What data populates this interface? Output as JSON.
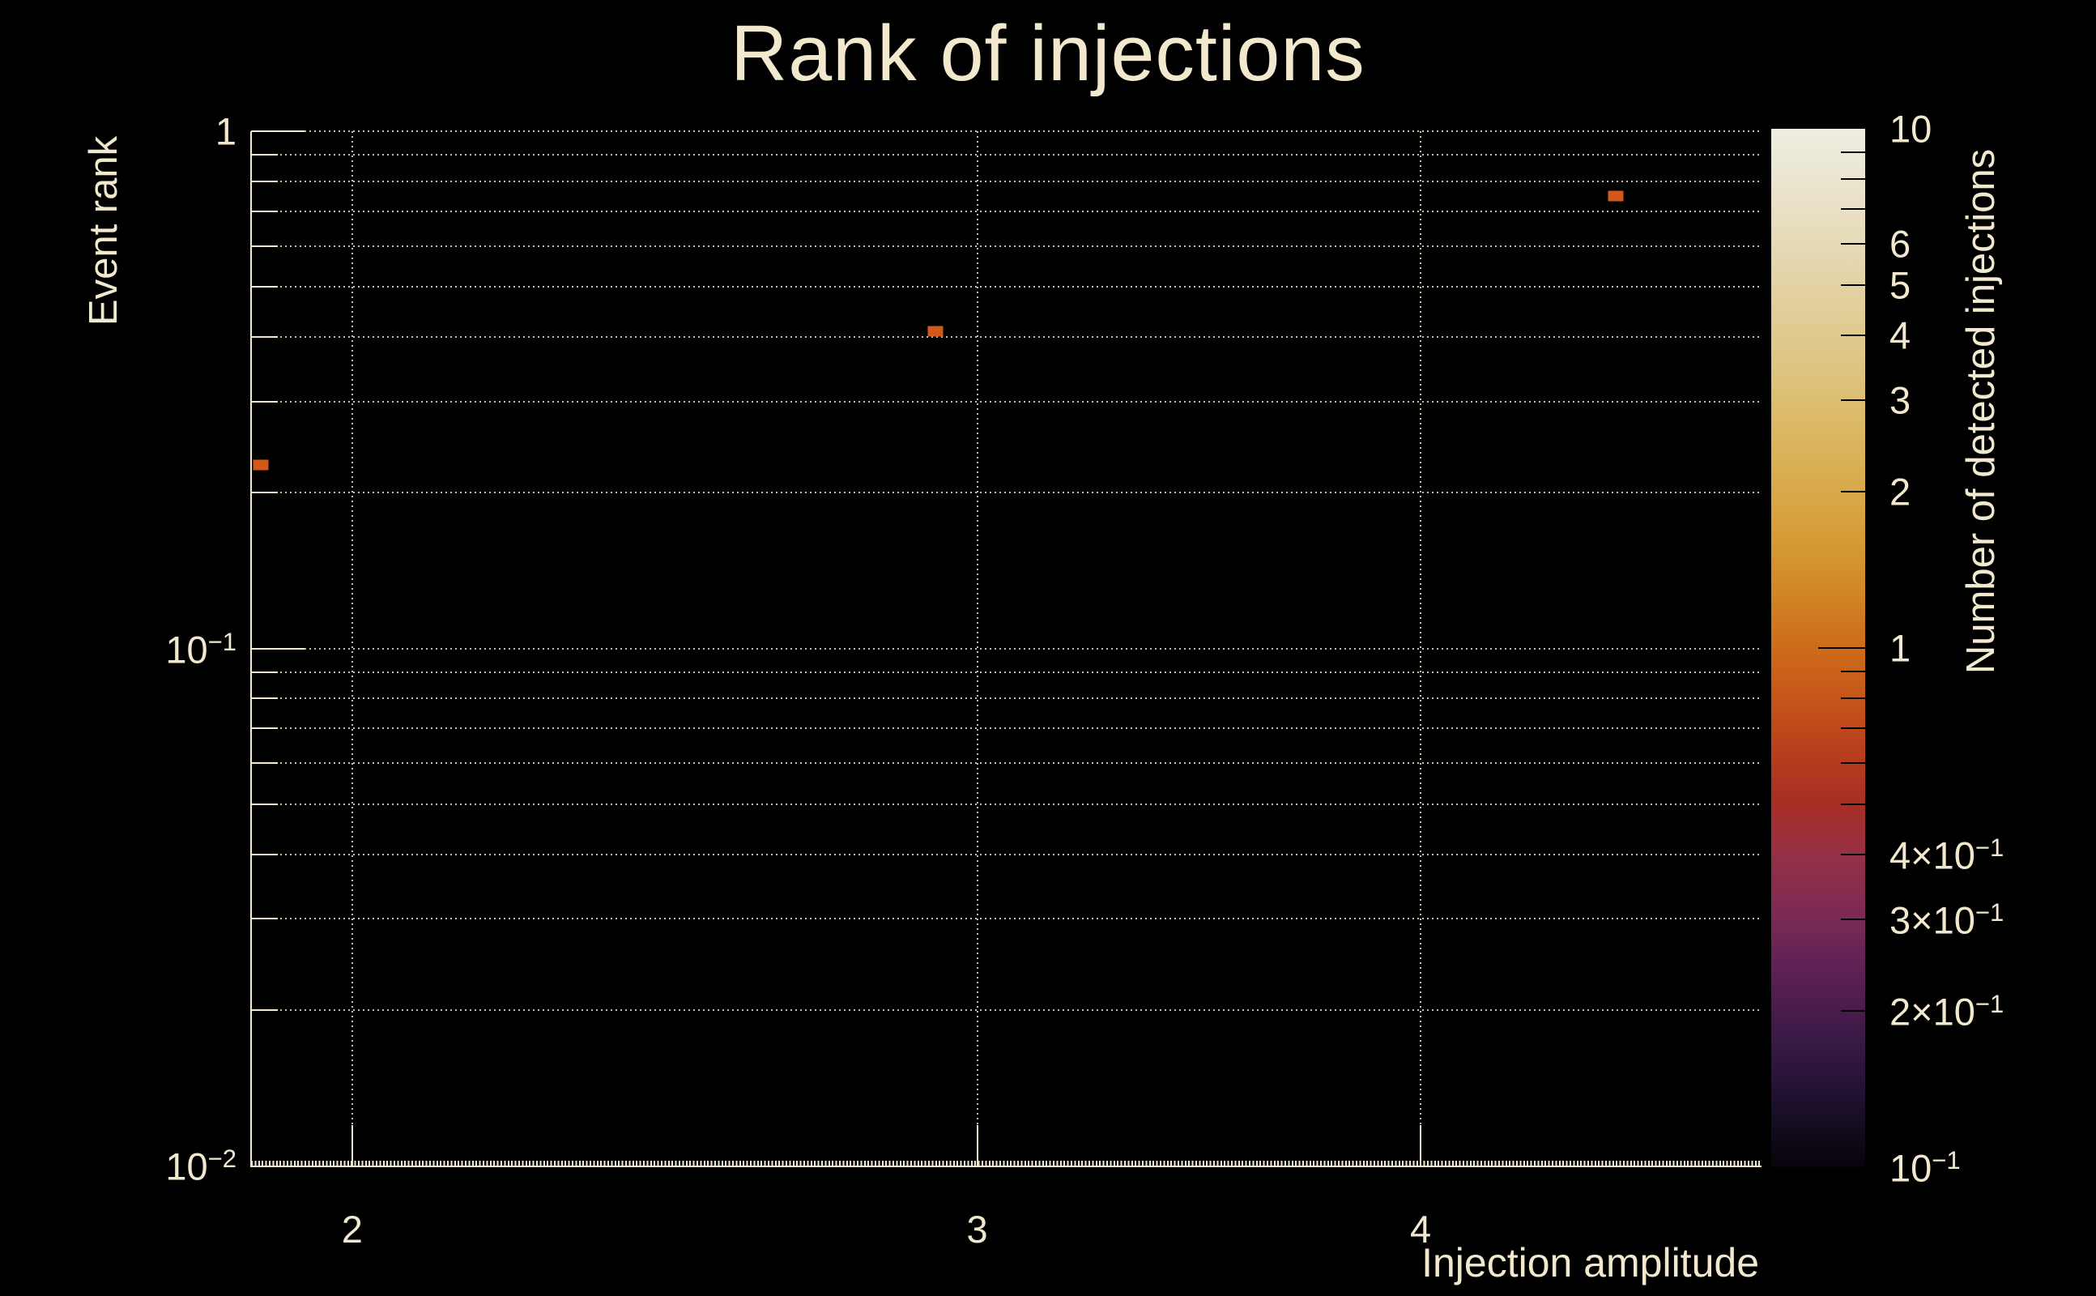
{
  "title": "Rank of injections",
  "colors": {
    "background": "#000000",
    "text": "#f1e8cd",
    "grid": "#f2e9ce",
    "marker": "#d2591a",
    "colorbar_tick": "#000000"
  },
  "chart_data": {
    "type": "heatmap",
    "title": "Rank of injections",
    "xlabel": "Injection amplitude",
    "ylabel": "Event rank",
    "colorbar_label": "Number of detected injections",
    "xscale": "log",
    "yscale": "log",
    "cscale": "log",
    "xlim": [
      1.873,
      4.99
    ],
    "ylim": [
      0.01,
      1
    ],
    "clim": [
      0.1,
      10
    ],
    "grid": true,
    "x_ticks": [
      {
        "value": 2,
        "label": "2"
      },
      {
        "value": 3,
        "label": "3"
      },
      {
        "value": 4,
        "label": "4"
      }
    ],
    "y_ticks": [
      {
        "value": 1,
        "base": "1",
        "exp": ""
      },
      {
        "value": 0.1,
        "base": "10",
        "exp": "−1"
      },
      {
        "value": 0.01,
        "base": "10",
        "exp": "−2"
      }
    ],
    "x_gridlines": [
      2,
      3,
      4
    ],
    "y_gridlines": [
      1,
      0.9,
      0.8,
      0.7,
      0.6,
      0.5,
      0.4,
      0.3,
      0.2,
      0.1,
      0.09,
      0.08,
      0.07,
      0.06,
      0.05,
      0.04,
      0.03,
      0.02
    ],
    "y_major_gridlines": [
      1,
      0.1
    ],
    "colorbar_ticks": [
      {
        "value": 10,
        "base": "10",
        "exp": ""
      },
      {
        "value": 6,
        "base": "6",
        "exp": ""
      },
      {
        "value": 5,
        "base": "5",
        "exp": ""
      },
      {
        "value": 4,
        "base": "4",
        "exp": ""
      },
      {
        "value": 3,
        "base": "3",
        "exp": ""
      },
      {
        "value": 2,
        "base": "2",
        "exp": ""
      },
      {
        "value": 1,
        "base": "1",
        "exp": ""
      },
      {
        "value": 0.4,
        "base": "4×10",
        "exp": "−1"
      },
      {
        "value": 0.3,
        "base": "3×10",
        "exp": "−1"
      },
      {
        "value": 0.2,
        "base": "2×10",
        "exp": "−1"
      },
      {
        "value": 0.1,
        "base": "10",
        "exp": "−1"
      }
    ],
    "colorbar_minor_tick_values": [
      9,
      8,
      7,
      6,
      5,
      4,
      3,
      2,
      0.9,
      0.8,
      0.7,
      0.6,
      0.5,
      0.4,
      0.3,
      0.2
    ],
    "colorbar_major_tick_values": [
      1
    ],
    "colorbar_gradient": [
      {
        "pos": 0,
        "color": "#efede3"
      },
      {
        "pos": 8,
        "color": "#e8e0c4"
      },
      {
        "pos": 16,
        "color": "#e2d0a0"
      },
      {
        "pos": 24,
        "color": "#ddc37c"
      },
      {
        "pos": 31,
        "color": "#dab35a"
      },
      {
        "pos": 38,
        "color": "#d6a03c"
      },
      {
        "pos": 44,
        "color": "#d28a28"
      },
      {
        "pos": 50,
        "color": "#cd6c1a"
      },
      {
        "pos": 55,
        "color": "#c5551a"
      },
      {
        "pos": 60,
        "color": "#b83f1d"
      },
      {
        "pos": 65,
        "color": "#a72e26"
      },
      {
        "pos": 70,
        "color": "#953046"
      },
      {
        "pos": 76,
        "color": "#7a2a55"
      },
      {
        "pos": 82,
        "color": "#581f53"
      },
      {
        "pos": 88,
        "color": "#381945"
      },
      {
        "pos": 94,
        "color": "#1c102c"
      },
      {
        "pos": 100,
        "color": "#070309"
      }
    ],
    "points": [
      {
        "x": 1.885,
        "y": 0.226,
        "count": 1
      },
      {
        "x": 2.92,
        "y": 0.41,
        "count": 1
      },
      {
        "x": 4.54,
        "y": 0.75,
        "count": 1
      }
    ]
  }
}
